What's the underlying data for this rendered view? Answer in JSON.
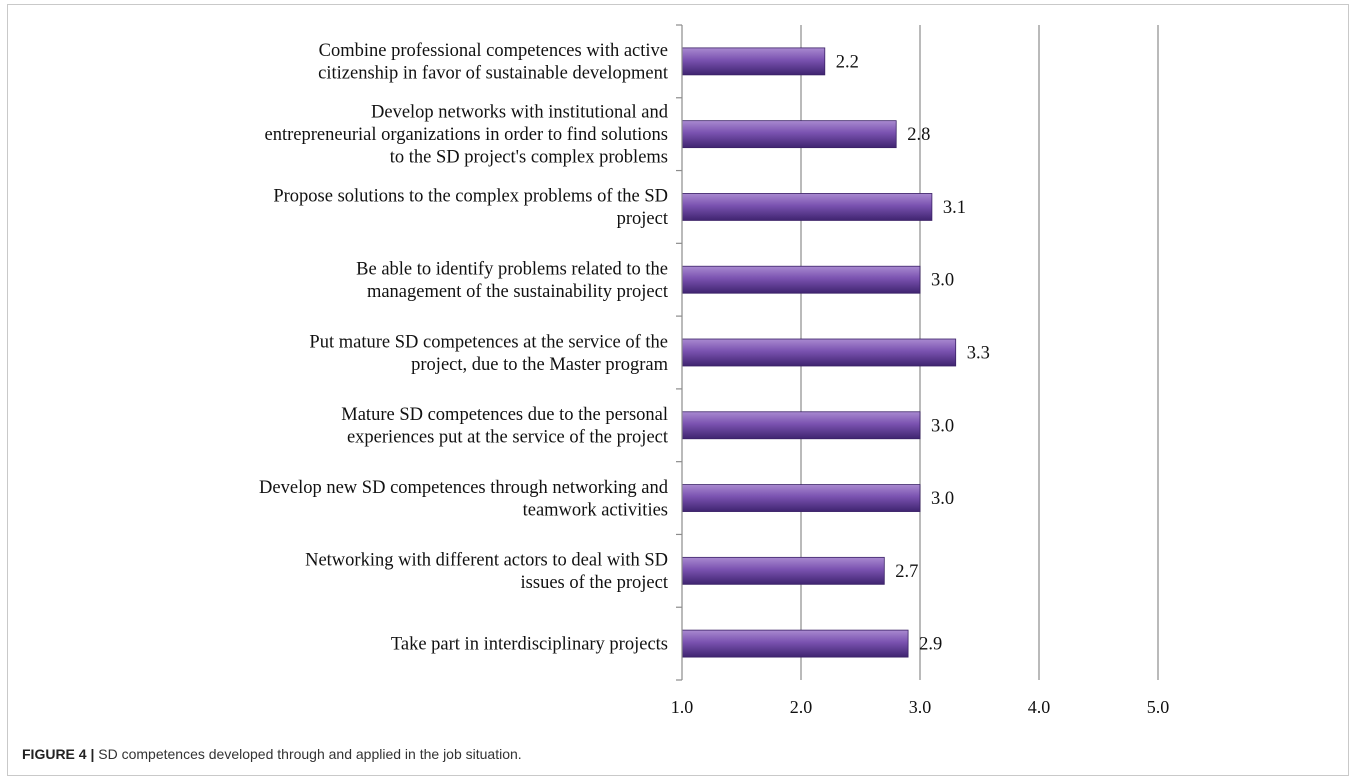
{
  "caption": {
    "figure_label": "FIGURE 4 |",
    "text": " SD competences developed through and applied in the job situation."
  },
  "colors": {
    "bar_fill_top": "#a98ad0",
    "bar_fill_mid": "#7a52b0",
    "bar_fill_bottom": "#3f2470",
    "bar_stroke": "#3a2166",
    "gridline": "#8c8c8c",
    "axis": "#8c8c8c"
  },
  "chart_data": {
    "type": "bar",
    "orientation": "horizontal",
    "title": "",
    "xlabel": "",
    "ylabel": "",
    "xlim": [
      1.0,
      5.0
    ],
    "x_ticks": [
      "1.0",
      "2.0",
      "3.0",
      "4.0",
      "5.0"
    ],
    "grid": "vertical",
    "legend": "none",
    "categories": [
      [
        "Combine professional competences with active",
        "citizenship in favor of sustainable development"
      ],
      [
        "Develop networks with institutional and",
        "entrepreneurial organizations in order to find solutions",
        "to the SD project's complex problems"
      ],
      [
        "Propose solutions to the complex problems of the SD",
        "project"
      ],
      [
        "Be able to identify problems related to the",
        "management of the sustainability project"
      ],
      [
        "Put mature SD competences at the service of the",
        "project, due to the Master program"
      ],
      [
        "Mature SD competences due to the personal",
        "experiences put at the service of the project"
      ],
      [
        "Develop new SD competences through networking and",
        "teamwork activities"
      ],
      [
        "Networking with different actors to deal with SD",
        "issues of the project"
      ],
      [
        "Take part in interdisciplinary projects"
      ]
    ],
    "values": [
      2.2,
      2.8,
      3.1,
      3.0,
      3.3,
      3.0,
      3.0,
      2.7,
      2.9
    ],
    "value_labels": [
      "2.2",
      "2.8",
      "3.1",
      "3.0",
      "3.3",
      "3.0",
      "3.0",
      "2.7",
      "2.9"
    ]
  }
}
